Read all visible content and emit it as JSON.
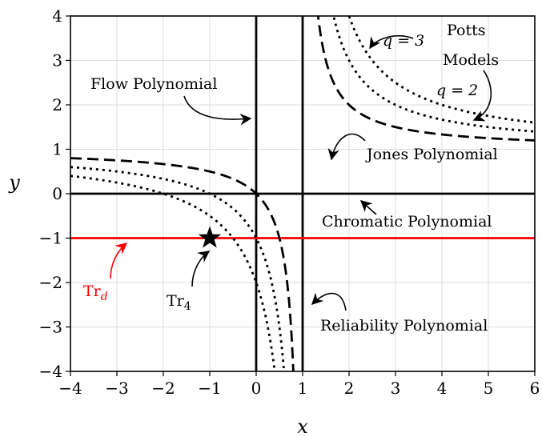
{
  "chart_data": {
    "type": "line",
    "title": "",
    "xlabel": "x",
    "ylabel": "y",
    "xlim": [
      -4,
      6
    ],
    "ylim": [
      -4,
      4
    ],
    "grid": true,
    "x_ticks": [
      "−4",
      "−3",
      "−2",
      "−1",
      "0",
      "1",
      "2",
      "3",
      "4",
      "5",
      "6"
    ],
    "y_ticks": [
      "−4",
      "−3",
      "−2",
      "−1",
      "0",
      "1",
      "2",
      "3",
      "4"
    ],
    "series": [
      {
        "style": "solid",
        "color": "#000000",
        "equation": "x = 0"
      },
      {
        "style": "solid",
        "color": "#000000",
        "equation": "x = 1"
      },
      {
        "style": "solid",
        "color": "#000000",
        "equation": "y = 0"
      },
      {
        "style": "solid",
        "color": "#ff0000",
        "equation": "y = -1"
      },
      {
        "style": "dashed",
        "color": "#000000",
        "equation": "(x-1)(y-1) = 1"
      },
      {
        "style": "dotted",
        "color": "#000000",
        "equation": "(x-1)(y-1) = 2"
      },
      {
        "style": "dotted",
        "color": "#000000",
        "equation": "(x-1)(y-1) = 3"
      }
    ],
    "markers": [
      {
        "shape": "star",
        "x": -1,
        "y": -1,
        "color": "#000000"
      }
    ],
    "annotations": {
      "q3": "q = 3",
      "potts1": "Potts",
      "potts2": "Models",
      "q2": "q = 2",
      "flow": "Flow Polynomial",
      "jones": "Jones Polynomial",
      "chromatic": "Chromatic Polynomial",
      "reliability": "Reliability Polynomial",
      "trd_main": "Tr",
      "trd_sub": "d",
      "tr4_main": "Tr",
      "tr4_sub": "4"
    }
  }
}
